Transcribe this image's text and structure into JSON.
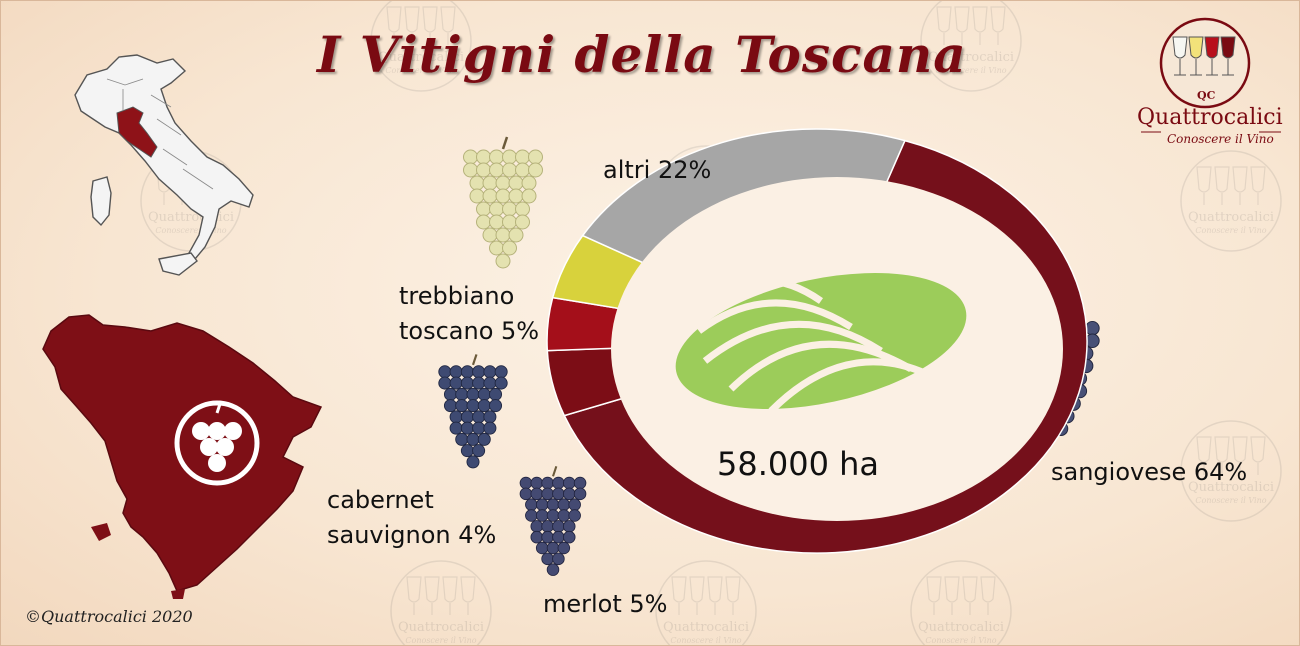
{
  "title": "I Vitigni della Toscana",
  "copyright": "©Quattrocalici 2020",
  "brand": {
    "monogram": "QC",
    "name": "Quattrocalici",
    "tagline": "Conoscere il Vino"
  },
  "watermark_text": "Quattrocalici",
  "watermark_tag": "Conoscere il Vino",
  "icons": [
    "italy-map-icon",
    "tuscany-map-icon",
    "grape-cluster-icon",
    "vineyard-icon",
    "wine-glasses-icon"
  ],
  "colors": {
    "sangiovese": "#75101b",
    "merlot": "#7c0d16",
    "cabernet": "#a40f1a",
    "trebbiano": "#d8d23c",
    "altri": "#a6a6a6",
    "tuscany": "#7e0f16",
    "vineyard": "#9ccc5a"
  },
  "chart_data": {
    "type": "pie",
    "variant": "donut",
    "center_label": "58.000 ha",
    "slices": [
      {
        "name": "sangiovese",
        "value": 64,
        "label": "sangiovese 64%"
      },
      {
        "name": "merlot",
        "value": 5,
        "label": "merlot 5%"
      },
      {
        "name": "cabernet sauvignon",
        "value": 4,
        "label_lines": [
          "cabernet",
          "sauvignon 4%"
        ]
      },
      {
        "name": "trebbiano toscano",
        "value": 5,
        "label_lines": [
          "trebbiano",
          "toscano 5%"
        ]
      },
      {
        "name": "altri",
        "value": 22,
        "label": "altri 22%"
      }
    ]
  }
}
